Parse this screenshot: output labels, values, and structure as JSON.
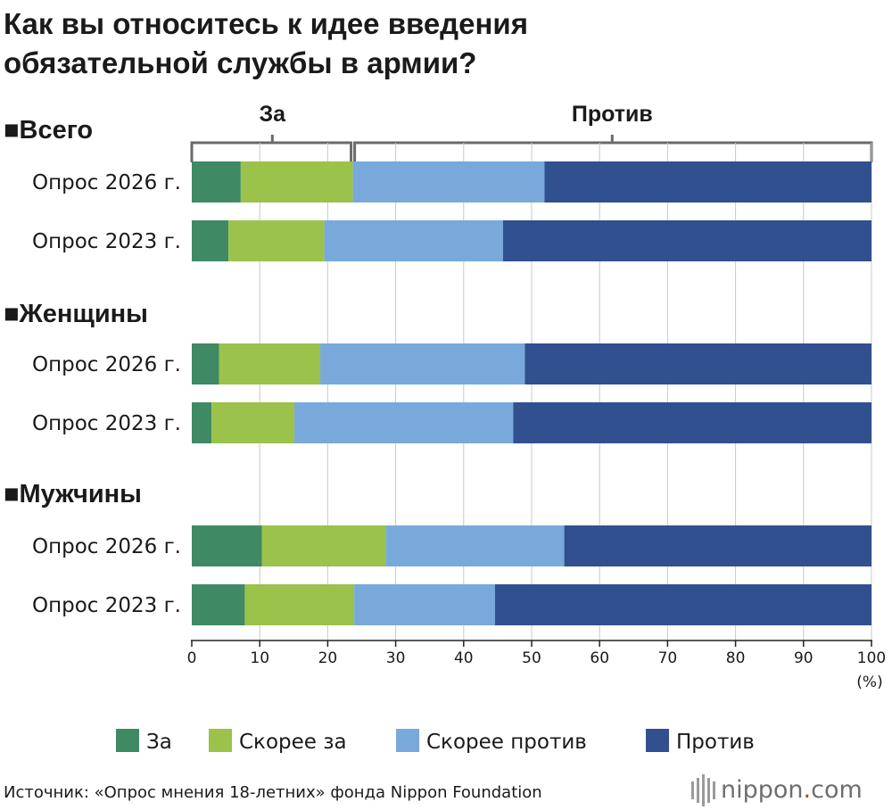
{
  "title_lines": [
    "Как вы относитесь к идее введения",
    "обязательной службы в армии?"
  ],
  "bracket": {
    "left_label": "За",
    "right_label": "Против"
  },
  "unit": "(%)",
  "source": "Источник: «Опрос мнения 18-летних» фонда Nippon Foundation",
  "brand": {
    "name": "nippon",
    "dot": ".",
    "tld": "com",
    "dot_color": "#c0392b"
  },
  "chart_data": {
    "type": "bar",
    "orientation": "horizontal",
    "stacked": true,
    "xlim": [
      0,
      100
    ],
    "x_ticks": [
      0,
      10,
      20,
      30,
      40,
      50,
      60,
      70,
      80,
      90,
      100
    ],
    "legend_position": "bottom",
    "series": [
      {
        "name": "За",
        "color": "#3f8a64"
      },
      {
        "name": "Скорее за",
        "color": "#9bc24a"
      },
      {
        "name": "Скорее против",
        "color": "#78a9da"
      },
      {
        "name": "Против",
        "color": "#30508f"
      }
    ],
    "groups": [
      {
        "name": "■Всего",
        "rows": [
          {
            "label": "Опрос 2026 г.",
            "values": [
              7.2,
              16.5,
              28.2,
              48.1
            ]
          },
          {
            "label": "Опрос 2023 г.",
            "values": [
              5.4,
              14.1,
              26.3,
              54.2
            ]
          }
        ]
      },
      {
        "name": "■Женщины",
        "rows": [
          {
            "label": "Опрос 2026 г.",
            "values": [
              4.0,
              14.9,
              30.1,
              51.0
            ]
          },
          {
            "label": "Опрос 2023 г.",
            "values": [
              2.9,
              12.2,
              32.2,
              52.7
            ]
          }
        ]
      },
      {
        "name": "■Мужчины",
        "rows": [
          {
            "label": "Опрос 2026 г.",
            "values": [
              10.3,
              18.2,
              26.3,
              45.2
            ]
          },
          {
            "label": "Опрос 2023 г.",
            "values": [
              7.8,
              16.1,
              20.7,
              55.4
            ]
          }
        ]
      }
    ]
  }
}
